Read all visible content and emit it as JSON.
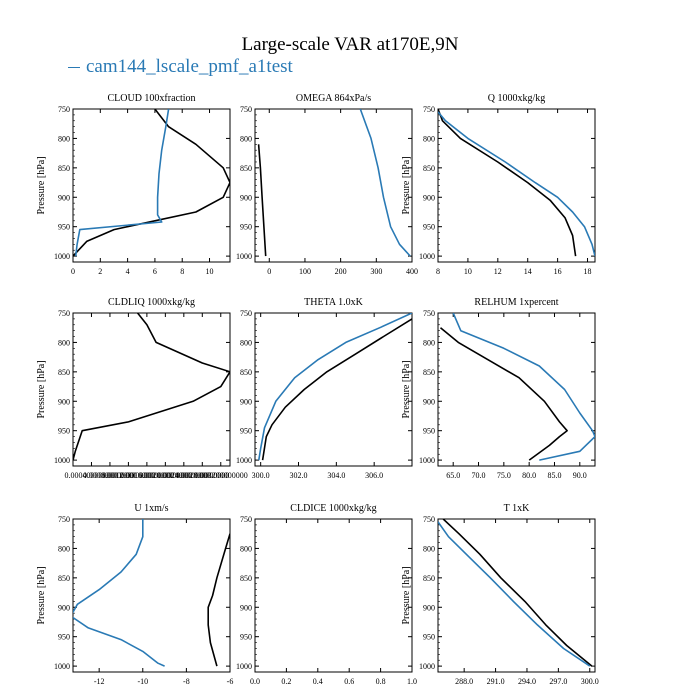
{
  "title": "Large-scale VAR at170E,9N",
  "legend": "cam144_lscale_pmf_a1test",
  "colors": {
    "control": "#000000",
    "test": "#2a7ab5"
  },
  "chart_data": [
    {
      "type": "line",
      "title": "CLOUD  100xfraction",
      "ylabel": "Pressure [hPa]",
      "xlim": [
        0,
        11.5
      ],
      "ylim": [
        750,
        1010
      ],
      "xticks": [
        0,
        2,
        4,
        6,
        8,
        10
      ],
      "xtick_labels": [
        "0",
        "2",
        "4",
        "6",
        "8",
        "10"
      ],
      "yticks": [
        750,
        800,
        850,
        900,
        950,
        1000
      ],
      "ytick_labels": [
        "750",
        "800",
        "850",
        "900",
        "950",
        "1000"
      ],
      "series": [
        {
          "key": "control",
          "points": [
            [
              6.0,
              750
            ],
            [
              7.0,
              780
            ],
            [
              9.0,
              810
            ],
            [
              11.0,
              850
            ],
            [
              11.5,
              875
            ],
            [
              11.0,
              900
            ],
            [
              9.0,
              925
            ],
            [
              6.0,
              940
            ],
            [
              3.0,
              955
            ],
            [
              1.0,
              975
            ],
            [
              0,
              1000
            ]
          ]
        },
        {
          "key": "test",
          "points": [
            [
              7.0,
              750
            ],
            [
              6.8,
              780
            ],
            [
              6.5,
              820
            ],
            [
              6.3,
              860
            ],
            [
              6.2,
              900
            ],
            [
              6.2,
              930
            ],
            [
              6.5,
              942
            ],
            [
              0.5,
              955
            ],
            [
              0.3,
              980
            ],
            [
              0.2,
              1000
            ]
          ]
        }
      ]
    },
    {
      "type": "line",
      "title": "OMEGA  864xPa/s",
      "ylabel": "",
      "xlim": [
        -40,
        400
      ],
      "ylim": [
        750,
        1010
      ],
      "xticks": [
        0,
        100,
        200,
        300,
        400
      ],
      "xtick_labels": [
        "0",
        "100",
        "200",
        "300",
        "400"
      ],
      "yticks": [
        750,
        800,
        850,
        900,
        950,
        1000
      ],
      "ytick_labels": [
        "750",
        "800",
        "850",
        "900",
        "950",
        "1000"
      ],
      "series": [
        {
          "key": "control",
          "points": [
            [
              -30,
              810
            ],
            [
              -25,
              850
            ],
            [
              -20,
              900
            ],
            [
              -15,
              950
            ],
            [
              -10,
              1000
            ]
          ]
        },
        {
          "key": "test",
          "points": [
            [
              255,
              750
            ],
            [
              285,
              800
            ],
            [
              305,
              850
            ],
            [
              320,
              900
            ],
            [
              340,
              950
            ],
            [
              365,
              980
            ],
            [
              395,
              1000
            ]
          ]
        }
      ]
    },
    {
      "type": "line",
      "title": "Q  1000xkg/kg",
      "ylabel": "Pressure [hPa]",
      "xlim": [
        8,
        18.5
      ],
      "ylim": [
        750,
        1010
      ],
      "xticks": [
        8,
        10,
        12,
        14,
        16,
        18
      ],
      "xtick_labels": [
        "8",
        "10",
        "12",
        "14",
        "16",
        "18"
      ],
      "series": [
        {
          "key": "control",
          "points": [
            [
              8.0,
              750
            ],
            [
              8.3,
              770
            ],
            [
              9.5,
              800
            ],
            [
              12.0,
              840
            ],
            [
              14.0,
              875
            ],
            [
              15.5,
              905
            ],
            [
              16.5,
              935
            ],
            [
              17.0,
              965
            ],
            [
              17.2,
              1000
            ]
          ]
        },
        {
          "key": "test",
          "points": [
            [
              8.0,
              755
            ],
            [
              8.5,
              770
            ],
            [
              10.0,
              800
            ],
            [
              12.5,
              840
            ],
            [
              14.5,
              875
            ],
            [
              16.0,
              900
            ],
            [
              17.0,
              925
            ],
            [
              17.8,
              950
            ],
            [
              18.3,
              980
            ],
            [
              18.5,
              1000
            ]
          ]
        }
      ],
      "yticks": [
        750,
        800,
        850,
        900,
        950,
        1000
      ],
      "ytick_labels": [
        "750",
        "800",
        "850",
        "900",
        "950",
        "1000"
      ]
    },
    {
      "type": "line",
      "title": "CLDLIQ  1000xkg/kg",
      "ylabel": "Pressure [hPa]",
      "xlim": [
        0,
        0.0034
      ],
      "ylim": [
        750,
        1010
      ],
      "xticks": [
        0.0004,
        0.0008,
        0.0012,
        0.0016,
        0.002,
        0.0024,
        0.0028,
        0.0032
      ],
      "xtick_labels": [
        "0.000400000000",
        "0.000800000000",
        "0.001200000000",
        "0.001600000000",
        "0.002000000000",
        "0.002400000000",
        "0.002800000000",
        "0.003200000000"
      ],
      "yticks": [
        750,
        800,
        850,
        900,
        950,
        1000
      ],
      "ytick_labels": [
        "750",
        "800",
        "850",
        "900",
        "950",
        "1000"
      ],
      "series": [
        {
          "key": "control",
          "points": [
            [
              0.0014,
              750
            ],
            [
              0.0016,
              770
            ],
            [
              0.0018,
              800
            ],
            [
              0.0028,
              835
            ],
            [
              0.0034,
              850
            ],
            [
              0.0032,
              875
            ],
            [
              0.0026,
              900
            ],
            [
              0.0012,
              935
            ],
            [
              0.0002,
              950
            ],
            [
              5e-05,
              985
            ],
            [
              0,
              1000
            ]
          ]
        }
      ]
    },
    {
      "type": "line",
      "title": "THETA  1.0xK",
      "ylabel": "",
      "xlim": [
        299.7,
        308.0
      ],
      "ylim": [
        750,
        1010
      ],
      "xticks": [
        300,
        302,
        304,
        306
      ],
      "xtick_labels": [
        "300.0",
        "302.0",
        "304.0",
        "306.0"
      ],
      "yticks": [
        750,
        800,
        850,
        900,
        950,
        1000
      ],
      "ytick_labels": [
        "750",
        "800",
        "850",
        "900",
        "950",
        "1000"
      ],
      "series": [
        {
          "key": "control",
          "points": [
            [
              308.0,
              760
            ],
            [
              306.5,
              790
            ],
            [
              305.0,
              820
            ],
            [
              303.5,
              850
            ],
            [
              302.3,
              880
            ],
            [
              301.3,
              910
            ],
            [
              300.6,
              940
            ],
            [
              300.3,
              960
            ],
            [
              300.1,
              1000
            ]
          ]
        },
        {
          "key": "test",
          "points": [
            [
              308.0,
              750
            ],
            [
              306.3,
              775
            ],
            [
              304.5,
              800
            ],
            [
              303.0,
              830
            ],
            [
              301.8,
              860
            ],
            [
              300.8,
              900
            ],
            [
              300.2,
              945
            ],
            [
              300.0,
              980
            ],
            [
              299.9,
              1000
            ]
          ]
        }
      ]
    },
    {
      "type": "line",
      "title": "RELHUM  1xpercent",
      "ylabel": "Pressure [hPa]",
      "xlim": [
        62,
        93
      ],
      "ylim": [
        750,
        1010
      ],
      "xticks": [
        65,
        70,
        75,
        80,
        85,
        90
      ],
      "xtick_labels": [
        "65.0",
        "70.0",
        "75.0",
        "80.0",
        "85.0",
        "90.0"
      ],
      "yticks": [
        750,
        800,
        850,
        900,
        950,
        1000
      ],
      "ytick_labels": [
        "750",
        "800",
        "850",
        "900",
        "950",
        "1000"
      ],
      "series": [
        {
          "key": "control",
          "points": [
            [
              62.5,
              775
            ],
            [
              66,
              800
            ],
            [
              72,
              830
            ],
            [
              78,
              860
            ],
            [
              83,
              900
            ],
            [
              86,
              935
            ],
            [
              87.5,
              950
            ],
            [
              86,
              960
            ],
            [
              84,
              975
            ],
            [
              80,
              1000
            ]
          ]
        },
        {
          "key": "test",
          "points": [
            [
              65,
              750
            ],
            [
              66.5,
              780
            ],
            [
              75,
              810
            ],
            [
              82,
              840
            ],
            [
              87,
              880
            ],
            [
              90,
              920
            ],
            [
              92.5,
              950
            ],
            [
              93,
              960
            ],
            [
              90,
              985
            ],
            [
              82,
              1000
            ]
          ]
        }
      ]
    },
    {
      "type": "line",
      "title": "U  1xm/s",
      "ylabel": "Pressure [hPa]",
      "xlim": [
        -13.2,
        -6
      ],
      "ylim": [
        750,
        1010
      ],
      "xticks": [
        -12,
        -10,
        -8,
        -6
      ],
      "xtick_labels": [
        "-12",
        "-10",
        "-8",
        "-6"
      ],
      "yticks": [
        750,
        800,
        850,
        900,
        950,
        1000
      ],
      "ytick_labels": [
        "750",
        "800",
        "850",
        "900",
        "950",
        "1000"
      ],
      "series": [
        {
          "key": "control",
          "points": [
            [
              -6.0,
              775
            ],
            [
              -6.2,
              800
            ],
            [
              -6.6,
              850
            ],
            [
              -6.8,
              880
            ],
            [
              -7.0,
              900
            ],
            [
              -7.0,
              930
            ],
            [
              -6.9,
              960
            ],
            [
              -6.6,
              1000
            ]
          ]
        },
        {
          "key": "test",
          "points": [
            [
              -10.0,
              750
            ],
            [
              -10.0,
              780
            ],
            [
              -10.3,
              810
            ],
            [
              -11.0,
              840
            ],
            [
              -12.0,
              870
            ],
            [
              -13.0,
              895
            ],
            [
              -13.3,
              915
            ],
            [
              -12.5,
              935
            ],
            [
              -11.0,
              955
            ],
            [
              -10.0,
              975
            ],
            [
              -9.3,
              995
            ],
            [
              -9.0,
              1000
            ]
          ]
        }
      ]
    },
    {
      "type": "line",
      "title": "CLDICE  1000xkg/kg",
      "ylabel": "",
      "xlim": [
        0,
        1
      ],
      "ylim": [
        750,
        1010
      ],
      "xticks": [
        0,
        0.2,
        0.4,
        0.6,
        0.8,
        1.0
      ],
      "xtick_labels": [
        "0.0",
        "0.2",
        "0.4",
        "0.6",
        "0.8",
        "1.0"
      ],
      "yticks": [
        750,
        800,
        850,
        900,
        950,
        1000
      ],
      "ytick_labels": [
        "750",
        "800",
        "850",
        "900",
        "950",
        "1000"
      ],
      "series": []
    },
    {
      "type": "line",
      "title": "T  1xK",
      "ylabel": "Pressure [hPa]",
      "xlim": [
        285.5,
        300.5
      ],
      "ylim": [
        750,
        1010
      ],
      "xticks": [
        288,
        291,
        294,
        297,
        300
      ],
      "xtick_labels": [
        "288.0",
        "291.0",
        "294.0",
        "297.0",
        "300.0"
      ],
      "yticks": [
        750,
        800,
        850,
        900,
        950,
        1000
      ],
      "ytick_labels": [
        "750",
        "800",
        "850",
        "900",
        "950",
        "1000"
      ],
      "series": [
        {
          "key": "control",
          "points": [
            [
              286.0,
              750
            ],
            [
              287.5,
              775
            ],
            [
              289.5,
              810
            ],
            [
              291.5,
              850
            ],
            [
              293.8,
              890
            ],
            [
              295.8,
              930
            ],
            [
              297.8,
              965
            ],
            [
              300.2,
              1000
            ]
          ]
        },
        {
          "key": "test",
          "points": [
            [
              285.5,
              755
            ],
            [
              286.5,
              780
            ],
            [
              288.5,
              815
            ],
            [
              290.5,
              850
            ],
            [
              292.7,
              890
            ],
            [
              295.0,
              930
            ],
            [
              297.5,
              970
            ],
            [
              300.0,
              1000
            ]
          ]
        }
      ]
    }
  ]
}
